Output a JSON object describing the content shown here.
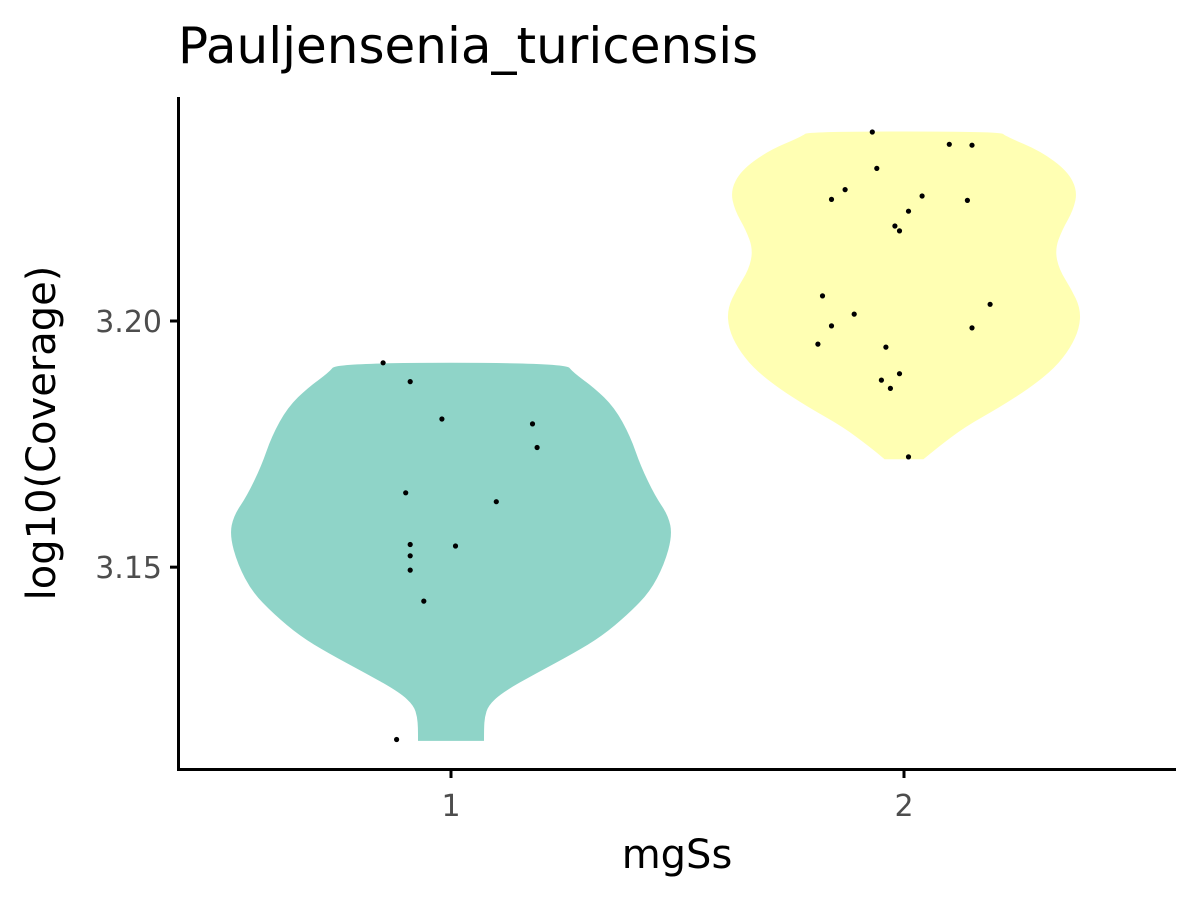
{
  "chart_data": {
    "type": "violin",
    "title": "Pauljensenia_turicensis",
    "xlabel": "mgSs",
    "ylabel": "log10(Coverage)",
    "categories": [
      "1",
      "2"
    ],
    "y_ticks": [
      3.15,
      3.2
    ],
    "y_tick_labels": [
      "3.15",
      "3.20"
    ],
    "ylim": [
      3.109,
      3.2455
    ],
    "grid": false,
    "legend": "none",
    "series": [
      {
        "category": "1",
        "color": "#8FD4C8",
        "min": 3.1147,
        "max": 3.1915,
        "density_profile": [
          [
            3.1147,
            0.162
          ],
          [
            3.1174,
            0.162
          ],
          [
            3.1195,
            0.165
          ],
          [
            3.1219,
            0.183
          ],
          [
            3.1245,
            0.25
          ],
          [
            3.1285,
            0.42
          ],
          [
            3.1325,
            0.6
          ],
          [
            3.136,
            0.74
          ],
          [
            3.1405,
            0.87
          ],
          [
            3.145,
            0.975
          ],
          [
            3.1505,
            1.045
          ],
          [
            3.1565,
            1.085
          ],
          [
            3.1605,
            1.065
          ],
          [
            3.1645,
            1.0
          ],
          [
            3.1705,
            0.93
          ],
          [
            3.1765,
            0.88
          ],
          [
            3.1825,
            0.8
          ],
          [
            3.1865,
            0.7
          ],
          [
            3.1895,
            0.6
          ],
          [
            3.1915,
            0.56
          ]
        ],
        "points": [
          3.1915,
          3.1877,
          3.1801,
          3.1791,
          3.1743,
          3.1651,
          3.1633,
          3.1546,
          3.1543,
          3.1523,
          3.1494,
          3.1431,
          3.115
        ],
        "jitter": [
          -0.15,
          -0.09,
          -0.02,
          0.18,
          0.19,
          -0.1,
          0.1,
          -0.09,
          0.01,
          -0.09,
          -0.09,
          -0.06,
          -0.12
        ]
      },
      {
        "category": "2",
        "color": "#FFFFB3",
        "min": 3.1719,
        "max": 3.2385,
        "density_profile": [
          [
            3.1719,
            0.095
          ],
          [
            3.1745,
            0.17
          ],
          [
            3.1785,
            0.3
          ],
          [
            3.1825,
            0.47
          ],
          [
            3.1865,
            0.62
          ],
          [
            3.1905,
            0.74
          ],
          [
            3.1945,
            0.815
          ],
          [
            3.1985,
            0.86
          ],
          [
            3.2025,
            0.865
          ],
          [
            3.2065,
            0.82
          ],
          [
            3.2105,
            0.76
          ],
          [
            3.2145,
            0.74
          ],
          [
            3.2185,
            0.775
          ],
          [
            3.2225,
            0.83
          ],
          [
            3.2265,
            0.85
          ],
          [
            3.2305,
            0.8
          ],
          [
            3.2345,
            0.67
          ],
          [
            3.2375,
            0.5
          ],
          [
            3.2385,
            0.47
          ]
        ],
        "points": [
          3.2384,
          3.2359,
          3.2357,
          3.231,
          3.2267,
          3.2254,
          3.2247,
          3.2245,
          3.2223,
          3.2193,
          3.2183,
          3.2051,
          3.2034,
          3.2014,
          3.199,
          3.1986,
          3.1953,
          3.1947,
          3.1893,
          3.188,
          3.1863,
          3.1724
        ],
        "jitter": [
          -0.07,
          0.1,
          0.15,
          -0.06,
          -0.13,
          0.04,
          -0.16,
          0.14,
          0.01,
          -0.02,
          -0.01,
          -0.18,
          0.19,
          -0.11,
          -0.16,
          0.15,
          -0.19,
          -0.04,
          -0.01,
          -0.05,
          -0.03,
          0.01
        ]
      }
    ]
  }
}
